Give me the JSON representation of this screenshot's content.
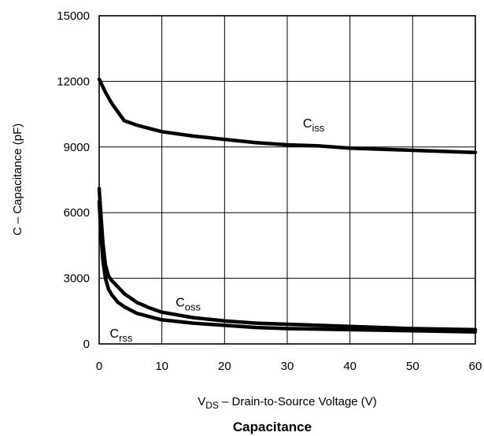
{
  "chart_data": {
    "type": "line",
    "title": "Capacitance",
    "xlabel": {
      "main": "V",
      "sub": "DS",
      "rest": "  –  Drain-to-Source Voltage (V)"
    },
    "ylabel": "C  –  Capacitance (pF)",
    "xlim": [
      0,
      60
    ],
    "ylim": [
      0,
      15000
    ],
    "xticks": [
      "0",
      "10",
      "20",
      "30",
      "40",
      "50",
      "60"
    ],
    "yticks": [
      "0",
      "3000",
      "6000",
      "9000",
      "12000",
      "15000"
    ],
    "grid": true,
    "series": [
      {
        "name": "C",
        "sub": "iss",
        "x": [
          0,
          1,
          2,
          4,
          6,
          8,
          10,
          15,
          20,
          25,
          30,
          35,
          40,
          45,
          50,
          55,
          60
        ],
        "y": [
          12100,
          11500,
          11000,
          10200,
          10000,
          9850,
          9700,
          9500,
          9350,
          9200,
          9100,
          9050,
          8950,
          8900,
          8850,
          8800,
          8750
        ],
        "label_pos": [
          32.5,
          9900
        ]
      },
      {
        "name": "C",
        "sub": "oss",
        "x": [
          0,
          0.3,
          0.6,
          1,
          1.5,
          2,
          3,
          4,
          6,
          8,
          10,
          15,
          20,
          25,
          30,
          40,
          50,
          60
        ],
        "y": [
          7100,
          5800,
          4600,
          3600,
          3100,
          2900,
          2600,
          2300,
          1900,
          1650,
          1450,
          1200,
          1050,
          950,
          900,
          800,
          700,
          650
        ],
        "label_pos": [
          12.2,
          1700
        ]
      },
      {
        "name": "C",
        "sub": "rss",
        "x": [
          0,
          0.3,
          0.6,
          1,
          1.5,
          2,
          3,
          4,
          6,
          8,
          10,
          15,
          20,
          25,
          30,
          40,
          50,
          60
        ],
        "y": [
          6500,
          5000,
          3800,
          3000,
          2500,
          2250,
          1900,
          1700,
          1400,
          1250,
          1100,
          950,
          850,
          750,
          700,
          650,
          600,
          550
        ],
        "label_pos": [
          1.7,
          280
        ]
      }
    ]
  }
}
